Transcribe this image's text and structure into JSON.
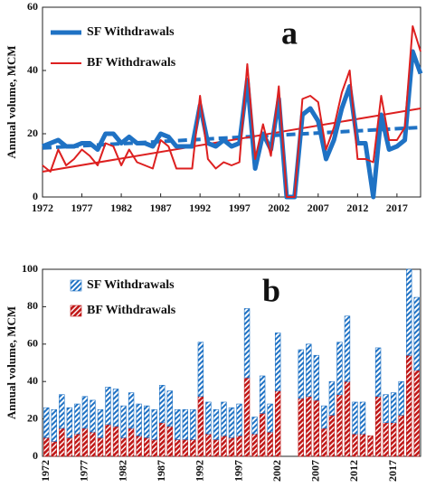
{
  "chart_data": [
    {
      "type": "line",
      "annotation": "a",
      "ylabel": "Annual  volume, MCM",
      "x": [
        1972,
        1973,
        1974,
        1975,
        1976,
        1977,
        1978,
        1979,
        1980,
        1981,
        1982,
        1983,
        1984,
        1985,
        1986,
        1987,
        1988,
        1989,
        1990,
        1991,
        1992,
        1993,
        1994,
        1995,
        1996,
        1997,
        1998,
        1999,
        2000,
        2001,
        2002,
        2003,
        2004,
        2005,
        2006,
        2007,
        2008,
        2009,
        2010,
        2011,
        2012,
        2013,
        2014,
        2015,
        2016,
        2017,
        2018,
        2019,
        2020
      ],
      "series": [
        {
          "name": "SF  Withdrawals",
          "color": "#1f72c4",
          "width": 5,
          "values": [
            16,
            17,
            18,
            16,
            16,
            17,
            17,
            15,
            20,
            20,
            17,
            19,
            17,
            17,
            16,
            20,
            19,
            16,
            16,
            16,
            29,
            17,
            16,
            18,
            16,
            17,
            37,
            9,
            20,
            15,
            31,
            0,
            0,
            26,
            28,
            24,
            12,
            18,
            28,
            35,
            17,
            17,
            0,
            26,
            15,
            16,
            18,
            46,
            39
          ]
        },
        {
          "name": "BF  Withdrawals",
          "color": "#dd2020",
          "width": 2,
          "values": [
            10,
            8,
            15,
            10,
            12,
            15,
            13,
            10,
            17,
            16,
            10,
            15,
            11,
            10,
            9,
            18,
            16,
            9,
            9,
            9,
            32,
            12,
            9,
            11,
            10,
            11,
            42,
            12,
            23,
            13,
            35,
            0,
            0,
            31,
            32,
            30,
            15,
            22,
            33,
            40,
            12,
            12,
            11,
            32,
            18,
            18,
            22,
            54,
            46
          ]
        }
      ],
      "trend_lines": [
        {
          "color": "#1f72c4",
          "dashed": true,
          "x": [
            1972,
            2020
          ],
          "values": [
            15.5,
            22
          ]
        },
        {
          "color": "#dd2020",
          "dashed": false,
          "x": [
            1972,
            2020
          ],
          "values": [
            8,
            28
          ]
        }
      ],
      "xlim": [
        1972,
        2020
      ],
      "xticks": [
        1972,
        1977,
        1982,
        1987,
        1992,
        1997,
        2002,
        2007,
        2012,
        2017
      ],
      "ylim": [
        0,
        60
      ],
      "yticks": [
        0,
        20,
        40,
        60
      ]
    },
    {
      "type": "bar",
      "stacked": true,
      "annotation": "b",
      "ylabel": "Annual  volume, MCM",
      "xtick_rotation": -90,
      "x": [
        1972,
        1973,
        1974,
        1975,
        1976,
        1977,
        1978,
        1979,
        1980,
        1981,
        1982,
        1983,
        1984,
        1985,
        1986,
        1987,
        1988,
        1989,
        1990,
        1991,
        1992,
        1993,
        1994,
        1995,
        1996,
        1997,
        1998,
        1999,
        2000,
        2001,
        2002,
        2003,
        2004,
        2005,
        2006,
        2007,
        2008,
        2009,
        2010,
        2011,
        2012,
        2013,
        2014,
        2015,
        2016,
        2017,
        2018,
        2019,
        2020
      ],
      "series": [
        {
          "name": "SF  Withdrawals",
          "color": "#1f72c4",
          "values": [
            16,
            17,
            18,
            16,
            16,
            17,
            17,
            15,
            20,
            20,
            17,
            19,
            17,
            17,
            16,
            20,
            19,
            16,
            16,
            16,
            29,
            17,
            16,
            18,
            16,
            17,
            37,
            9,
            20,
            15,
            31,
            0,
            0,
            26,
            28,
            24,
            12,
            18,
            28,
            35,
            17,
            17,
            0,
            26,
            15,
            16,
            18,
            46,
            39
          ]
        },
        {
          "name": "BF  Withdrawals",
          "color": "#c01818",
          "values": [
            10,
            8,
            15,
            10,
            12,
            15,
            13,
            10,
            17,
            16,
            10,
            15,
            11,
            10,
            9,
            18,
            16,
            9,
            9,
            9,
            32,
            12,
            9,
            11,
            10,
            11,
            42,
            12,
            23,
            13,
            35,
            0,
            0,
            31,
            32,
            30,
            15,
            22,
            33,
            40,
            12,
            12,
            11,
            32,
            18,
            18,
            22,
            54,
            46
          ]
        }
      ],
      "xlim": [
        1971.5,
        2020.5
      ],
      "xticks": [
        1972,
        1977,
        1982,
        1987,
        1992,
        1997,
        2002,
        2007,
        2012,
        2017
      ],
      "ylim": [
        0,
        100
      ],
      "yticks": [
        0,
        20,
        40,
        60,
        80,
        100
      ]
    }
  ]
}
